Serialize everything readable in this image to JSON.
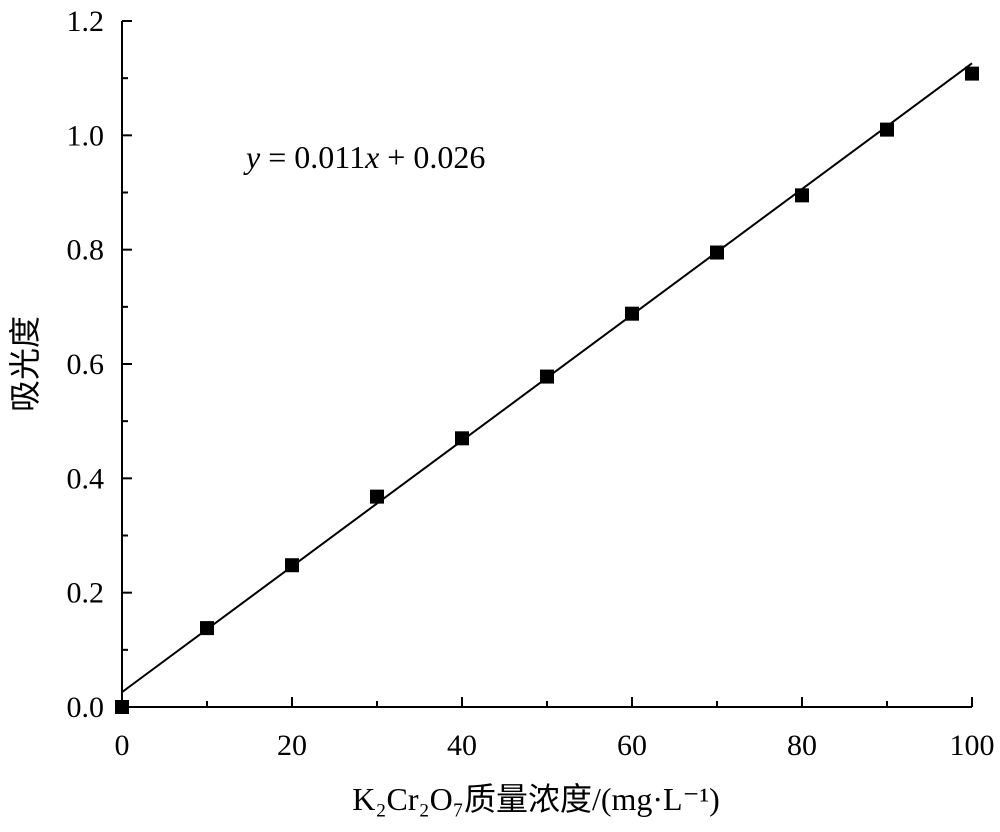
{
  "chart_data": {
    "type": "scatter",
    "title": "",
    "xlabel": "K₂Cr₂O₇质量浓度/(mg·L⁻¹)",
    "ylabel": "吸光度",
    "xlim": [
      0,
      100
    ],
    "ylim": [
      0,
      1.2
    ],
    "x_ticks": [
      "0",
      "20",
      "40",
      "60",
      "80",
      "100"
    ],
    "y_ticks": [
      "0.0",
      "0.2",
      "0.4",
      "0.6",
      "0.8",
      "1.0",
      "1.2"
    ],
    "grid": false,
    "legend": "none",
    "series": [
      {
        "x": [
          0,
          10,
          20,
          30,
          40,
          50,
          60,
          70,
          80,
          90,
          100
        ],
        "y": [
          0.0,
          0.138,
          0.248,
          0.368,
          0.47,
          0.578,
          0.688,
          0.795,
          0.895,
          1.01,
          1.108
        ],
        "marker": "square",
        "color": "#000000"
      }
    ],
    "fit_line": {
      "slope": 0.011,
      "intercept": 0.026,
      "color": "#000000"
    },
    "annotation": "y = 0.011x + 0.026"
  }
}
